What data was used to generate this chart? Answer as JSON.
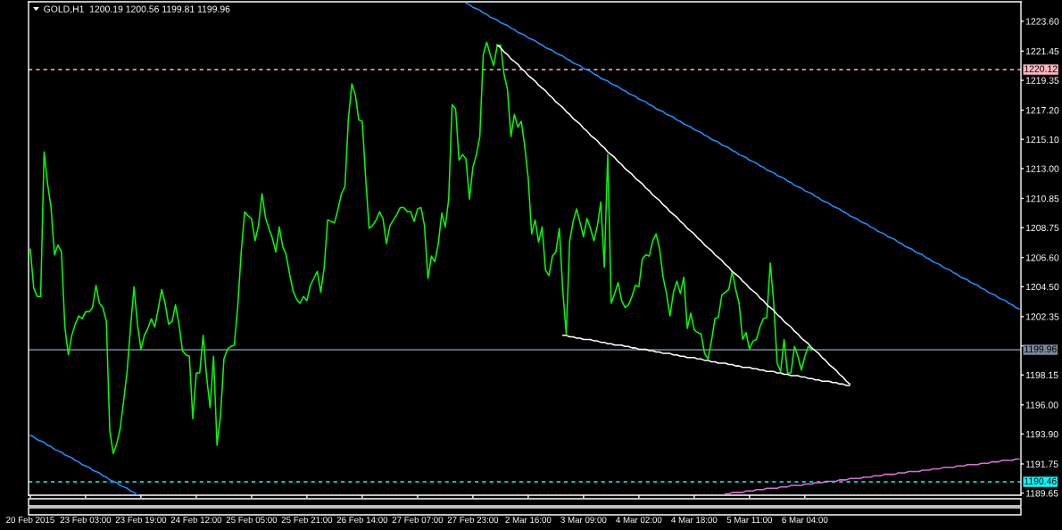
{
  "chart_data": {
    "type": "line",
    "title": "GOLD,H1  1200.19 1200.56 1199.81 1199.96",
    "categories": [
      "20 Feb 2015",
      null,
      null,
      null,
      null,
      null,
      null,
      null,
      null,
      null,
      null,
      null,
      null,
      null,
      null,
      null,
      "23 Feb 03:00",
      null,
      null,
      null,
      null,
      null,
      null,
      null,
      null,
      null,
      null,
      null,
      null,
      null,
      null,
      null,
      "23 Feb 19:00",
      null,
      null,
      null,
      null,
      null,
      null,
      null,
      null,
      null,
      null,
      null,
      null,
      null,
      null,
      null,
      "24 Feb 12:00",
      null,
      null,
      null,
      null,
      null,
      null,
      null,
      null,
      null,
      null,
      null,
      null,
      null,
      null,
      null,
      "25 Feb 05:00",
      null,
      null,
      null,
      null,
      null,
      null,
      null,
      null,
      null,
      null,
      null,
      null,
      null,
      null,
      null,
      "25 Feb 21:00",
      null,
      null,
      null,
      null,
      null,
      null,
      null,
      null,
      null,
      null,
      null,
      null,
      null,
      null,
      null,
      "26 Feb 14:00",
      null,
      null,
      null,
      null,
      null,
      null,
      null,
      null,
      null,
      null,
      null,
      null,
      null,
      null,
      null,
      "27 Feb 07:00",
      null,
      null,
      null,
      null,
      null,
      null,
      null,
      null,
      null,
      null,
      null,
      null,
      null,
      null,
      null,
      "27 Feb 23:00",
      null,
      null,
      null,
      null,
      null,
      null,
      null,
      null,
      null,
      null,
      null,
      null,
      null,
      null,
      null,
      "2 Mar 16:00",
      null,
      null,
      null,
      null,
      null,
      null,
      null,
      null,
      null,
      null,
      null,
      null,
      null,
      null,
      null,
      "3 Mar 09:00",
      null,
      null,
      null,
      null,
      null,
      null,
      null,
      null,
      null,
      null,
      null,
      null,
      null,
      null,
      null,
      "4 Mar 02:00",
      null,
      null,
      null,
      null,
      null,
      null,
      null,
      null,
      null,
      null,
      null,
      null,
      null,
      null,
      null,
      "4 Mar 18:00",
      null,
      null,
      null,
      null,
      null,
      null,
      null,
      null,
      null,
      null,
      null,
      null,
      null,
      null,
      null,
      "5 Mar 11:00",
      null,
      null,
      null,
      null,
      null,
      null,
      null,
      null,
      null,
      null,
      null,
      null,
      null,
      null,
      null,
      "6 Mar 04:00",
      null,
      null,
      null,
      null,
      null,
      null,
      null,
      null,
      null,
      null,
      null,
      null,
      null,
      null,
      null,
      null,
      null,
      null,
      null,
      null,
      null,
      null,
      null,
      null,
      null,
      null,
      null,
      null,
      null,
      null,
      null,
      null,
      null,
      null,
      null,
      null,
      null,
      null,
      null,
      null,
      null,
      null,
      null,
      null,
      null,
      null,
      null,
      null,
      null,
      null,
      null,
      null,
      null,
      null,
      null,
      null,
      null,
      null,
      null,
      null,
      null,
      null
    ],
    "ylim": [
      1189.5,
      1225.0
    ],
    "yticks": [
      {
        "value": 1189.65,
        "label": "1189.65"
      },
      {
        "value": 1191.75,
        "label": "1191.75"
      },
      {
        "value": 1193.9,
        "label": "1193.90"
      },
      {
        "value": 1196.0,
        "label": "1196.00"
      },
      {
        "value": 1198.15,
        "label": "1198.15"
      },
      {
        "value": 1200.25,
        "label": null
      },
      {
        "value": 1202.35,
        "label": "1202.35"
      },
      {
        "value": 1204.5,
        "label": "1204.50"
      },
      {
        "value": 1206.6,
        "label": "1206.60"
      },
      {
        "value": 1208.75,
        "label": "1208.75"
      },
      {
        "value": 1210.85,
        "label": "1210.85"
      },
      {
        "value": 1213.0,
        "label": "1213.00"
      },
      {
        "value": 1215.1,
        "label": "1215.10"
      },
      {
        "value": 1217.2,
        "label": "1217.20"
      },
      {
        "value": 1219.35,
        "label": "1219.35"
      },
      {
        "value": 1221.45,
        "label": "1221.45"
      },
      {
        "value": 1223.6,
        "label": "1223.60"
      }
    ],
    "series": [
      {
        "color": "#00ff00",
        "values": [
          1207.2,
          1204.4,
          1203.8,
          1203.8,
          1214.2,
          1211.9,
          1210.2,
          1206.8,
          1207.5,
          1207.0,
          1201.6,
          1199.6,
          1201.0,
          1201.8,
          1202.4,
          1202.2,
          1202.7,
          1202.7,
          1203.0,
          1204.6,
          1203.3,
          1203.0,
          1202.0,
          1194.1,
          1192.5,
          1193.2,
          1194.3,
          1196.3,
          1198.4,
          1201.6,
          1204.5,
          1201.8,
          1200.0,
          1201.0,
          1201.5,
          1202.2,
          1201.6,
          1202.9,
          1204.3,
          1203.3,
          1201.8,
          1202.0,
          1203.2,
          1201.8,
          1199.9,
          1199.6,
          1199.5,
          1195.0,
          1198.3,
          1198.3,
          1201.0,
          1198.0,
          1195.8,
          1199.5,
          1193.1,
          1195.2,
          1199.3,
          1200.0,
          1200.2,
          1200.3,
          1203.1,
          1207.0,
          1209.9,
          1209.6,
          1209.4,
          1207.8,
          1208.9,
          1211.2,
          1209.5,
          1208.7,
          1208.0,
          1207.0,
          1208.8,
          1207.4,
          1206.8,
          1205.4,
          1204.2,
          1203.6,
          1203.3,
          1203.8,
          1203.5,
          1204.6,
          1205.1,
          1205.6,
          1204.1,
          1205.9,
          1209.3,
          1209.2,
          1209.1,
          1210.1,
          1211.2,
          1211.7,
          1216.6,
          1219.1,
          1218.3,
          1216.5,
          1216.4,
          1212.3,
          1208.7,
          1208.9,
          1209.3,
          1209.9,
          1209.4,
          1207.6,
          1208.9,
          1209.3,
          1209.7,
          1210.2,
          1210.2,
          1209.9,
          1209.9,
          1209.2,
          1210.1,
          1210.2,
          1208.9,
          1205.1,
          1206.7,
          1206.3,
          1207.6,
          1209.8,
          1208.8,
          1210.8,
          1217.6,
          1217.3,
          1213.6,
          1214.0,
          1213.7,
          1210.8,
          1213.1,
          1214.0,
          1215.3,
          1221.2,
          1222.1,
          1221.2,
          1220.4,
          1221.8,
          1221.9,
          1219.8,
          1218.7,
          1215.3,
          1216.9,
          1216.0,
          1216.4,
          1214.6,
          1212.3,
          1208.3,
          1209.3,
          1207.7,
          1208.8,
          1205.7,
          1205.3,
          1206.7,
          1207.0,
          1208.7,
          1204.2,
          1201.1,
          1207.8,
          1209.2,
          1210.1,
          1209.1,
          1208.1,
          1209.4,
          1208.7,
          1207.8,
          1208.9,
          1210.6,
          1205.9,
          1214.0,
          1203.3,
          1204.0,
          1204.8,
          1203.5,
          1203.0,
          1203.2,
          1203.8,
          1204.6,
          1204.5,
          1206.5,
          1206.8,
          1206.7,
          1207.8,
          1208.3,
          1207.2,
          1205.2,
          1204.0,
          1202.4,
          1204.1,
          1204.9,
          1204.0,
          1205.2,
          1201.5,
          1202.6,
          1201.4,
          1201.2,
          1201.1,
          1199.7,
          1199.3,
          1200.6,
          1202.2,
          1202.3,
          1203.9,
          1204.1,
          1204.3,
          1205.6,
          1204.3,
          1203.3,
          1200.7,
          1201.2,
          1200.0,
          1200.6,
          1200.7,
          1201.6,
          1202.2,
          1202.3,
          1206.2,
          1203.3,
          1199.0,
          1198.4,
          1200.7,
          1198.3,
          1198.3,
          1200.2,
          1199.5,
          1198.5,
          1199.5,
          1200.2,
          1199.96,
          null,
          null,
          null,
          null,
          null,
          null,
          null,
          null,
          null,
          null,
          null,
          null,
          null,
          null,
          null,
          null,
          null,
          null,
          null,
          null,
          null,
          null,
          null,
          null,
          null,
          null,
          null,
          null,
          null,
          null,
          null,
          null,
          null,
          null,
          null,
          null,
          null,
          null,
          null,
          null,
          null,
          null,
          null,
          null,
          null,
          null,
          null,
          null,
          null,
          null,
          null,
          null,
          null,
          null,
          null,
          null,
          null,
          null,
          null,
          null
        ]
      },
      {
        "color": "#ffffff",
        "values": [
          null,
          null,
          null,
          null,
          null,
          null,
          null,
          null,
          null,
          null,
          null,
          null,
          null,
          null,
          null,
          null,
          null,
          null,
          null,
          null,
          null,
          null,
          null,
          null,
          null,
          null,
          null,
          null,
          null,
          null,
          null,
          null,
          null,
          null,
          null,
          null,
          null,
          null,
          null,
          null,
          null,
          null,
          null,
          null,
          null,
          null,
          null,
          null,
          null,
          null,
          null,
          null,
          null,
          null,
          null,
          null,
          null,
          null,
          null,
          null,
          null,
          null,
          null,
          null,
          null,
          null,
          null,
          null,
          null,
          null,
          null,
          null,
          null,
          null,
          null,
          null,
          null,
          null,
          null,
          null,
          null,
          null,
          null,
          null,
          null,
          null,
          null,
          null,
          null,
          null,
          null,
          null,
          null,
          null,
          null,
          null,
          null,
          null,
          null,
          null,
          null,
          null,
          null,
          null,
          null,
          null,
          null,
          null,
          null,
          null,
          null,
          null,
          null,
          null,
          null,
          null,
          null,
          null,
          null,
          null,
          null,
          null,
          null,
          null,
          null,
          null,
          null,
          null,
          null,
          null,
          null,
          null,
          null,
          null,
          null,
          1221.9,
          1221.7,
          1221.4,
          1221.2,
          1220.9,
          1220.7,
          1220.5,
          1220.2,
          1220.0,
          1219.7,
          1219.5,
          1219.3,
          1219.0,
          1218.8,
          1218.6,
          1218.3,
          1218.1,
          1217.8,
          1217.6,
          1217.4,
          1217.1,
          1216.9,
          1216.6,
          1216.4,
          1216.2,
          1215.9,
          1215.7,
          1215.4,
          1215.2,
          1215.0,
          1214.7,
          1214.5,
          1214.2,
          1214.0,
          1213.8,
          1213.5,
          1213.3,
          1213.0,
          1212.8,
          1212.6,
          1212.3,
          1212.1,
          1211.9,
          1211.6,
          1211.4,
          1211.1,
          1210.9,
          1210.7,
          1210.4,
          1210.2,
          1209.9,
          1209.7,
          1209.5,
          1209.2,
          1209.0,
          1208.7,
          1208.5,
          1208.3,
          1208.0,
          1207.8,
          1207.5,
          1207.3,
          1207.1,
          1206.8,
          1206.6,
          1206.4,
          1206.1,
          1205.9,
          1205.6,
          1205.4,
          1205.2,
          1204.9,
          1204.7,
          1204.4,
          1204.2,
          1204.0,
          1203.7,
          1203.5,
          1203.2,
          1203.0,
          1202.8,
          1202.5,
          1202.3,
          1202.0,
          1201.8,
          1201.6,
          1201.3,
          1201.1,
          1200.8,
          1200.6,
          1200.4,
          1200.1,
          1199.9,
          1199.7,
          1199.4,
          1199.2,
          1198.9,
          1198.7,
          1198.5,
          1198.2,
          1198.0,
          1197.7,
          1197.5,
          null,
          null,
          null,
          null,
          null,
          null,
          null,
          null,
          null,
          null,
          null,
          null,
          null,
          null,
          null,
          null,
          null,
          null,
          null,
          null,
          null,
          null,
          null,
          null,
          null,
          null,
          null,
          null,
          null,
          null,
          null,
          null,
          null,
          null,
          null,
          null,
          null,
          null,
          null,
          null,
          null,
          null,
          null,
          null,
          null,
          null,
          null,
          null,
          null
        ]
      },
      {
        "color": "#ffffff",
        "values": [
          null,
          null,
          null,
          null,
          null,
          null,
          null,
          null,
          null,
          null,
          null,
          null,
          null,
          null,
          null,
          null,
          null,
          null,
          null,
          null,
          null,
          null,
          null,
          null,
          null,
          null,
          null,
          null,
          null,
          null,
          null,
          null,
          null,
          null,
          null,
          null,
          null,
          null,
          null,
          null,
          null,
          null,
          null,
          null,
          null,
          null,
          null,
          null,
          null,
          null,
          null,
          null,
          null,
          null,
          null,
          null,
          null,
          null,
          null,
          null,
          null,
          null,
          null,
          null,
          null,
          null,
          null,
          null,
          null,
          null,
          null,
          null,
          null,
          null,
          null,
          null,
          null,
          null,
          null,
          null,
          null,
          null,
          null,
          null,
          null,
          null,
          null,
          null,
          null,
          null,
          null,
          null,
          null,
          null,
          null,
          null,
          null,
          null,
          null,
          null,
          null,
          null,
          null,
          null,
          null,
          null,
          null,
          null,
          null,
          null,
          null,
          null,
          null,
          null,
          null,
          null,
          null,
          null,
          null,
          null,
          null,
          null,
          null,
          null,
          null,
          null,
          null,
          null,
          null,
          null,
          null,
          null,
          null,
          null,
          null,
          null,
          null,
          null,
          null,
          null,
          null,
          null,
          null,
          null,
          null,
          null,
          null,
          null,
          null,
          null,
          null,
          null,
          null,
          null,
          1201.0,
          1201.0,
          1200.9,
          1200.9,
          1200.8,
          1200.8,
          1200.7,
          1200.7,
          1200.7,
          1200.6,
          1200.6,
          1200.5,
          1200.5,
          1200.4,
          1200.4,
          1200.3,
          1200.3,
          1200.3,
          1200.2,
          1200.2,
          1200.1,
          1200.1,
          1200.0,
          1200.0,
          1200.0,
          1199.9,
          1199.9,
          1199.8,
          1199.8,
          1199.7,
          1199.7,
          1199.7,
          1199.6,
          1199.6,
          1199.5,
          1199.5,
          1199.4,
          1199.4,
          1199.4,
          1199.3,
          1199.3,
          1199.2,
          1199.2,
          1199.1,
          1199.1,
          1199.0,
          1199.0,
          1199.0,
          1198.9,
          1198.9,
          1198.8,
          1198.8,
          1198.7,
          1198.7,
          1198.7,
          1198.6,
          1198.6,
          1198.5,
          1198.5,
          1198.4,
          1198.4,
          1198.4,
          1198.3,
          1198.3,
          1198.2,
          1198.2,
          1198.1,
          1198.1,
          1198.1,
          1198.0,
          1198.0,
          1197.9,
          1197.9,
          1197.8,
          1197.8,
          1197.7,
          1197.7,
          1197.7,
          1197.6,
          1197.6,
          1197.5,
          1197.5,
          1197.4,
          1197.4,
          null,
          null,
          null,
          null,
          null,
          null,
          null,
          null,
          null,
          null,
          null,
          null,
          null,
          null,
          null,
          null,
          null,
          null,
          null,
          null,
          null,
          null,
          null,
          null,
          null,
          null,
          null,
          null,
          null,
          null,
          null,
          null,
          null,
          null,
          null,
          null,
          null,
          null,
          null,
          null,
          null,
          null,
          null,
          null,
          null,
          null,
          null,
          null,
          null
        ]
      },
      {
        "color": "#1e90ff",
        "values": [
          null,
          null,
          null,
          null,
          null,
          null,
          null,
          null,
          null,
          null,
          null,
          null,
          null,
          null,
          null,
          null,
          null,
          null,
          null,
          null,
          null,
          null,
          null,
          null,
          null,
          null,
          null,
          null,
          null,
          null,
          null,
          null,
          null,
          null,
          null,
          null,
          null,
          null,
          null,
          null,
          null,
          null,
          null,
          null,
          null,
          null,
          null,
          null,
          null,
          null,
          null,
          null,
          null,
          null,
          null,
          null,
          null,
          null,
          null,
          null,
          null,
          null,
          null,
          null,
          null,
          null,
          null,
          null,
          null,
          null,
          null,
          null,
          null,
          null,
          null,
          null,
          null,
          null,
          null,
          null,
          null,
          null,
          null,
          null,
          null,
          null,
          null,
          null,
          null,
          null,
          null,
          null,
          null,
          null,
          null,
          null,
          null,
          null,
          null,
          null,
          null,
          null,
          null,
          null,
          null,
          null,
          null,
          null,
          null,
          null,
          null,
          null,
          null,
          null,
          null,
          null,
          null,
          null,
          null,
          null,
          null,
          null,
          null,
          null,
          null,
          null,
          1224.9,
          1224.8,
          1224.6,
          1224.5,
          1224.4,
          1224.2,
          1224.1,
          1223.9,
          1223.8,
          1223.7,
          1223.5,
          1223.4,
          1223.3,
          1223.1,
          1223.0,
          1222.8,
          1222.7,
          1222.6,
          1222.4,
          1222.3,
          1222.2,
          1222.0,
          1221.9,
          1221.7,
          1221.6,
          1221.5,
          1221.3,
          1221.2,
          1221.1,
          1220.9,
          1220.8,
          1220.6,
          1220.5,
          1220.4,
          1220.2,
          1220.1,
          1220.0,
          1219.8,
          1219.7,
          1219.5,
          1219.4,
          1219.3,
          1219.1,
          1219.0,
          1218.9,
          1218.7,
          1218.6,
          1218.4,
          1218.3,
          1218.2,
          1218.0,
          1217.9,
          1217.8,
          1217.6,
          1217.5,
          1217.3,
          1217.2,
          1217.1,
          1216.9,
          1216.8,
          1216.7,
          1216.5,
          1216.4,
          1216.2,
          1216.1,
          1216.0,
          1215.8,
          1215.7,
          1215.6,
          1215.4,
          1215.3,
          1215.1,
          1215.0,
          1214.9,
          1214.7,
          1214.6,
          1214.5,
          1214.3,
          1214.2,
          1214.0,
          1213.9,
          1213.8,
          1213.6,
          1213.5,
          1213.4,
          1213.2,
          1213.1,
          1212.9,
          1212.8,
          1212.7,
          1212.5,
          1212.4,
          1212.3,
          1212.1,
          1212.0,
          1211.8,
          1211.7,
          1211.6,
          1211.4,
          1211.3,
          1211.2,
          1211.0,
          1210.9,
          1210.7,
          1210.6,
          1210.5,
          1210.3,
          1210.2,
          1210.1,
          1209.9,
          1209.8,
          1209.6,
          1209.5,
          1209.4,
          1209.2,
          1209.1,
          1209.0,
          1208.8,
          1208.7,
          1208.5,
          1208.4,
          1208.3,
          1208.1,
          1208.0,
          1207.9,
          1207.7,
          1207.6,
          1207.4,
          1207.3,
          1207.2,
          1207.0,
          1206.9,
          1206.8,
          1206.6,
          1206.5,
          1206.3,
          1206.2,
          1206.1,
          1205.9,
          1205.8,
          1205.7,
          1205.5,
          1205.4,
          1205.2,
          1205.1,
          1205.0,
          1204.8,
          1204.7,
          1204.6,
          1204.4,
          1204.3,
          1204.1,
          1204.0,
          1203.9,
          1203.7,
          1203.6,
          1203.5,
          1203.3,
          1203.2,
          1203.0,
          1202.9
        ]
      },
      {
        "color": "#1e90ff",
        "values": [
          1193.8,
          1193.7,
          1193.5,
          1193.4,
          1193.3,
          1193.1,
          1193.0,
          1192.8,
          1192.7,
          1192.6,
          1192.4,
          1192.3,
          1192.2,
          1192.0,
          1191.9,
          1191.7,
          1191.6,
          1191.5,
          1191.3,
          1191.2,
          1191.1,
          1190.9,
          1190.8,
          1190.6,
          1190.5,
          1190.4,
          1190.2,
          1190.1,
          1190.0,
          1189.8,
          1189.7,
          1189.5,
          null,
          null,
          null,
          null,
          null,
          null,
          null,
          null,
          null,
          null,
          null,
          null,
          null,
          null,
          null,
          null,
          null,
          null,
          null,
          null,
          null,
          null,
          null,
          null,
          null,
          null,
          null,
          null,
          null,
          null,
          null,
          null,
          null,
          null,
          null,
          null,
          null,
          null,
          null,
          null,
          null,
          null,
          null,
          null,
          null,
          null,
          null,
          null,
          null,
          null,
          null,
          null,
          null,
          null,
          null,
          null,
          null,
          null,
          null,
          null,
          null,
          null,
          null,
          null,
          null,
          null,
          null,
          null,
          null,
          null,
          null,
          null,
          null,
          null,
          null,
          null,
          null,
          null,
          null,
          null,
          null,
          null,
          null,
          null,
          null,
          null,
          null,
          null,
          null,
          null,
          null,
          null,
          null,
          null,
          null,
          null,
          null,
          null,
          null,
          null,
          null,
          null,
          null,
          null,
          null,
          null,
          null,
          null,
          null,
          null,
          null,
          null,
          null,
          null,
          null,
          null,
          null,
          null,
          null,
          null,
          null,
          null,
          null,
          null,
          null,
          null,
          null,
          null,
          null,
          null,
          null,
          null,
          null,
          null,
          null,
          null,
          null,
          null,
          null,
          null,
          null,
          null,
          null,
          null,
          null,
          null,
          null,
          null,
          null,
          null,
          null,
          null,
          null,
          null,
          null,
          null,
          null,
          null,
          null,
          null,
          null,
          null,
          null,
          null,
          null,
          null,
          null,
          null,
          null,
          null,
          null,
          null,
          null,
          null,
          null,
          null,
          null,
          null,
          null,
          null,
          null,
          null,
          null,
          null,
          null,
          null,
          null,
          null,
          null,
          null,
          null,
          null,
          null,
          null,
          null,
          null,
          null,
          null,
          null,
          null,
          null,
          null,
          null,
          null,
          null,
          null,
          null,
          null,
          null,
          null,
          null,
          null,
          null,
          null,
          null,
          null,
          null,
          null,
          null,
          null,
          null,
          null,
          null,
          null,
          null,
          null,
          null,
          null,
          null,
          null,
          null,
          null,
          null,
          null,
          null,
          null,
          null,
          null,
          null,
          null,
          null,
          null,
          null,
          null,
          null,
          null,
          null,
          null,
          null,
          null,
          null,
          null,
          null,
          null,
          null
        ]
      },
      {
        "color": "#da70d6",
        "values": [
          null,
          null,
          null,
          null,
          null,
          null,
          null,
          null,
          null,
          null,
          null,
          null,
          null,
          null,
          null,
          null,
          null,
          null,
          null,
          null,
          null,
          null,
          null,
          null,
          null,
          null,
          null,
          null,
          null,
          null,
          null,
          null,
          null,
          null,
          null,
          null,
          null,
          null,
          null,
          null,
          null,
          null,
          null,
          null,
          null,
          null,
          null,
          null,
          null,
          null,
          null,
          null,
          null,
          null,
          null,
          null,
          null,
          null,
          null,
          null,
          null,
          null,
          null,
          null,
          null,
          null,
          null,
          null,
          null,
          null,
          null,
          null,
          null,
          null,
          null,
          null,
          null,
          null,
          null,
          null,
          null,
          null,
          null,
          null,
          null,
          null,
          null,
          null,
          null,
          null,
          null,
          null,
          null,
          null,
          null,
          null,
          null,
          null,
          null,
          null,
          null,
          null,
          null,
          null,
          null,
          null,
          null,
          null,
          null,
          null,
          null,
          null,
          null,
          null,
          null,
          null,
          null,
          null,
          null,
          null,
          null,
          null,
          null,
          null,
          null,
          null,
          null,
          null,
          null,
          null,
          null,
          null,
          null,
          null,
          null,
          null,
          null,
          null,
          null,
          null,
          null,
          null,
          null,
          null,
          null,
          null,
          null,
          null,
          null,
          null,
          null,
          null,
          null,
          null,
          null,
          null,
          null,
          null,
          null,
          null,
          null,
          null,
          null,
          null,
          null,
          null,
          null,
          null,
          null,
          null,
          null,
          null,
          null,
          null,
          null,
          null,
          null,
          null,
          null,
          null,
          null,
          null,
          null,
          null,
          null,
          null,
          null,
          null,
          null,
          null,
          null,
          null,
          null,
          null,
          null,
          null,
          null,
          null,
          null,
          null,
          null,
          1189.6,
          1189.6,
          1189.7,
          1189.7,
          1189.7,
          1189.7,
          1189.8,
          1189.8,
          1189.8,
          1189.9,
          1189.9,
          1189.9,
          1190.0,
          1190.0,
          1190.0,
          1190.0,
          1190.1,
          1190.1,
          1190.1,
          1190.2,
          1190.2,
          1190.2,
          1190.2,
          1190.3,
          1190.3,
          1190.3,
          1190.4,
          1190.4,
          1190.4,
          1190.5,
          1190.5,
          1190.5,
          1190.5,
          1190.6,
          1190.6,
          1190.6,
          1190.7,
          1190.7,
          1190.7,
          1190.7,
          1190.8,
          1190.8,
          1190.8,
          1190.9,
          1190.9,
          1190.9,
          1191.0,
          1191.0,
          1191.0,
          1191.0,
          1191.1,
          1191.1,
          1191.1,
          1191.2,
          1191.2,
          1191.2,
          1191.2,
          1191.3,
          1191.3,
          1191.3,
          1191.4,
          1191.4,
          1191.4,
          1191.5,
          1191.5,
          1191.5,
          1191.5,
          1191.6,
          1191.6,
          1191.6,
          1191.7,
          1191.7,
          1191.7,
          1191.7,
          1191.8,
          1191.8,
          1191.8,
          1191.9,
          1191.9,
          1191.9,
          1192.0,
          1192.0,
          1192.0,
          1192.0,
          1192.1,
          1192.1
        ]
      }
    ],
    "ref_lines": [
      {
        "axis": "y",
        "value": 1220.12,
        "label": "1220.12",
        "color": "#ffb6c1",
        "line_style": "dashed"
      },
      {
        "axis": "y",
        "value": 1199.96,
        "label": "1199.96",
        "color": "#778899",
        "line_style": "solid"
      },
      {
        "axis": "y",
        "value": 1190.46,
        "label": "1190.46",
        "color": "#00ffff",
        "line_style": "dashed"
      }
    ]
  }
}
